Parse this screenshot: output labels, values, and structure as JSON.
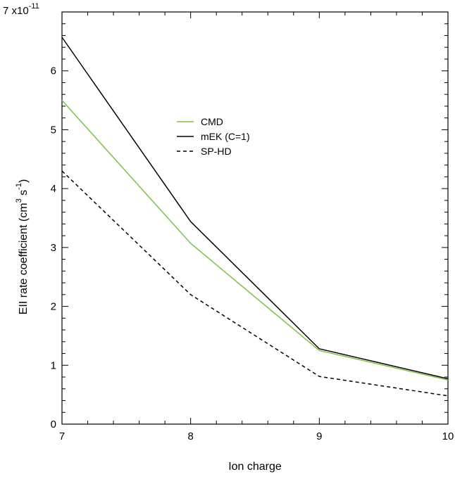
{
  "chart_data": {
    "type": "line",
    "xlabel": "Ion charge",
    "ylabel": {
      "text_main": "EII rate coefficient (cm",
      "sup1": "3",
      "text_mid": " s",
      "sup2": "-1",
      "text_end": ")"
    },
    "y_multiplier": {
      "base": "x10",
      "exponent": "-11"
    },
    "xlim": [
      7,
      10
    ],
    "ylim": [
      0,
      7
    ],
    "x_ticks": [
      7,
      8,
      9,
      10
    ],
    "y_ticks": [
      0,
      1,
      2,
      3,
      4,
      5,
      6,
      7
    ],
    "legend_position": "upper-middle",
    "grid": false,
    "series": [
      {
        "name": "CMD",
        "color": "#7dc242",
        "dash": "solid",
        "x": [
          7,
          8,
          9,
          10
        ],
        "values": [
          5.5,
          3.07,
          1.25,
          0.75
        ]
      },
      {
        "name": "mEK (C=1)",
        "color": "#000000",
        "dash": "solid",
        "x": [
          7,
          8,
          9,
          10
        ],
        "values": [
          6.57,
          3.44,
          1.28,
          0.77
        ]
      },
      {
        "name": "SP-HD",
        "color": "#000000",
        "dash": "dashed",
        "x": [
          7,
          8,
          9,
          10
        ],
        "values": [
          4.3,
          2.2,
          0.81,
          0.48
        ]
      }
    ]
  }
}
